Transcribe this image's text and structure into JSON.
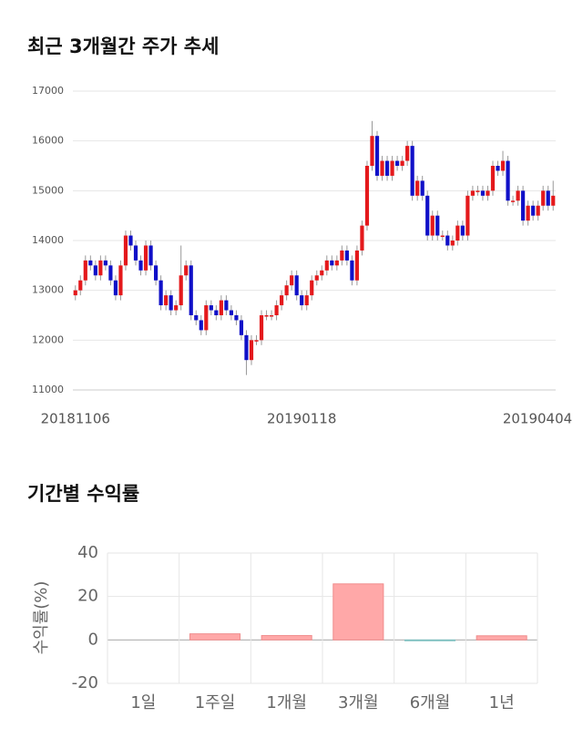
{
  "chart_data": [
    {
      "type": "candlestick",
      "title": "최근 3개월간 주가 추세",
      "categories": [
        "20181106",
        null,
        null,
        null,
        null,
        null,
        null,
        null,
        null,
        null,
        null,
        null,
        null,
        null,
        null,
        null,
        null,
        null,
        null,
        null,
        null,
        null,
        null,
        null,
        null,
        null,
        null,
        null,
        null,
        null,
        null,
        null,
        null,
        null,
        null,
        null,
        null,
        null,
        null,
        null,
        null,
        null,
        null,
        null,
        null,
        "20190118",
        null,
        null,
        null,
        null,
        null,
        null,
        null,
        null,
        null,
        null,
        null,
        null,
        null,
        null,
        null,
        null,
        null,
        null,
        null,
        null,
        null,
        null,
        null,
        null,
        null,
        null,
        null,
        null,
        null,
        null,
        null,
        null,
        null,
        null,
        null,
        null,
        null,
        null,
        null,
        null,
        null,
        null,
        null,
        null,
        null,
        null,
        null,
        null,
        null,
        "20190404"
      ],
      "open": [
        12900,
        13000,
        13200,
        13600,
        13500,
        13300,
        13600,
        13500,
        13200,
        12900,
        13500,
        14100,
        13900,
        13600,
        13400,
        13900,
        13500,
        13200,
        12700,
        12900,
        12600,
        12700,
        13300,
        13500,
        12500,
        12400,
        12200,
        12700,
        12600,
        12500,
        12800,
        12600,
        12500,
        12400,
        12100,
        11600,
        12000,
        12000,
        12500,
        12500,
        12500,
        12700,
        12900,
        13100,
        13300,
        12900,
        12700,
        12900,
        13200,
        13300,
        13400,
        13600,
        13500,
        13600,
        13800,
        13600,
        13200,
        13800,
        14300,
        15500,
        16100,
        15300,
        15600,
        15300,
        15600,
        15500,
        15600,
        15900,
        14900,
        15200,
        14900,
        14100,
        14500,
        14100,
        14100,
        13900,
        14000,
        14300,
        14100,
        14900,
        15000,
        15000,
        14900,
        15000,
        15500,
        15400,
        15600,
        14800,
        14800,
        15000,
        14400,
        14700,
        14500,
        14700,
        15000,
        14700
      ],
      "high": [
        13100,
        13300,
        13700,
        13700,
        13600,
        13700,
        13700,
        13600,
        13300,
        13600,
        14200,
        14200,
        14000,
        13700,
        14000,
        14000,
        13600,
        13300,
        13000,
        13000,
        12800,
        13900,
        13600,
        13600,
        12600,
        12500,
        12800,
        12800,
        12700,
        12900,
        12900,
        12700,
        12600,
        12500,
        12200,
        12100,
        12100,
        12600,
        12600,
        12600,
        12800,
        13000,
        13200,
        13400,
        13400,
        13000,
        13000,
        13300,
        13400,
        13500,
        13700,
        13700,
        13700,
        13900,
        13900,
        13700,
        13900,
        14400,
        15600,
        16400,
        16200,
        15700,
        15700,
        15700,
        15700,
        15700,
        16000,
        16000,
        15300,
        15300,
        15000,
        14600,
        14600,
        14200,
        14200,
        14100,
        14400,
        14400,
        15000,
        15100,
        15100,
        15100,
        15100,
        15600,
        15600,
        15800,
        15700,
        14900,
        15100,
        15100,
        14800,
        14800,
        14800,
        15100,
        15100,
        15200
      ],
      "low": [
        12800,
        12900,
        13100,
        13400,
        13200,
        13200,
        13400,
        13100,
        12800,
        12800,
        13400,
        13800,
        13500,
        13300,
        13300,
        13400,
        13100,
        12600,
        12600,
        12500,
        12500,
        12600,
        13200,
        12400,
        12300,
        12100,
        12100,
        12500,
        12400,
        12400,
        12500,
        12400,
        12300,
        12000,
        11300,
        11500,
        11900,
        11900,
        12400,
        12400,
        12400,
        12600,
        12800,
        13000,
        12800,
        12600,
        12600,
        12800,
        13100,
        13200,
        13300,
        13400,
        13400,
        13500,
        13500,
        13100,
        13100,
        13700,
        14200,
        15400,
        15200,
        15200,
        15200,
        15200,
        15400,
        15400,
        15500,
        14800,
        14800,
        14800,
        14000,
        14000,
        14000,
        14000,
        13800,
        13800,
        13900,
        14000,
        14000,
        14800,
        14900,
        14800,
        14800,
        14900,
        15300,
        15300,
        14700,
        14700,
        14700,
        14300,
        14300,
        14400,
        14400,
        14600,
        14600,
        14600
      ],
      "close": [
        13000,
        13200,
        13600,
        13500,
        13300,
        13600,
        13500,
        13200,
        12900,
        13500,
        14100,
        13900,
        13600,
        13400,
        13900,
        13500,
        13200,
        12700,
        12900,
        12600,
        12700,
        13300,
        13500,
        12500,
        12400,
        12200,
        12700,
        12600,
        12500,
        12800,
        12600,
        12500,
        12400,
        12100,
        11600,
        12000,
        12000,
        12500,
        12500,
        12500,
        12700,
        12900,
        13100,
        13300,
        12900,
        12700,
        12900,
        13200,
        13300,
        13400,
        13600,
        13500,
        13600,
        13800,
        13600,
        13200,
        13800,
        14300,
        15500,
        16100,
        15300,
        15600,
        15300,
        15600,
        15500,
        15600,
        15900,
        14900,
        15200,
        14900,
        14100,
        14500,
        14100,
        14100,
        13900,
        14000,
        14300,
        14100,
        14900,
        15000,
        15000,
        14900,
        15000,
        15500,
        15400,
        15600,
        14800,
        14800,
        15000,
        14400,
        14700,
        14500,
        14700,
        15000,
        14700,
        14900
      ],
      "up_color": "#e4191c",
      "down_color": "#1010c8",
      "ylim": [
        11000,
        17000
      ],
      "yticks": [
        11000,
        12000,
        13000,
        14000,
        15000,
        16000,
        17000
      ],
      "grid": true
    },
    {
      "type": "bar",
      "title": "기간별 수익률",
      "ylabel": "수익률(%)",
      "categories": [
        "1일",
        "1주일",
        "1개월",
        "3개월",
        "6개월",
        "1년"
      ],
      "values": [
        0,
        2.8,
        2.0,
        25.8,
        -0.4,
        1.9
      ],
      "positive_color": "#ffa8a8",
      "negative_color": "#a8d8d8",
      "ylim": [
        -20,
        40
      ],
      "yticks": [
        -20,
        0,
        20,
        40
      ],
      "grid": true
    }
  ]
}
